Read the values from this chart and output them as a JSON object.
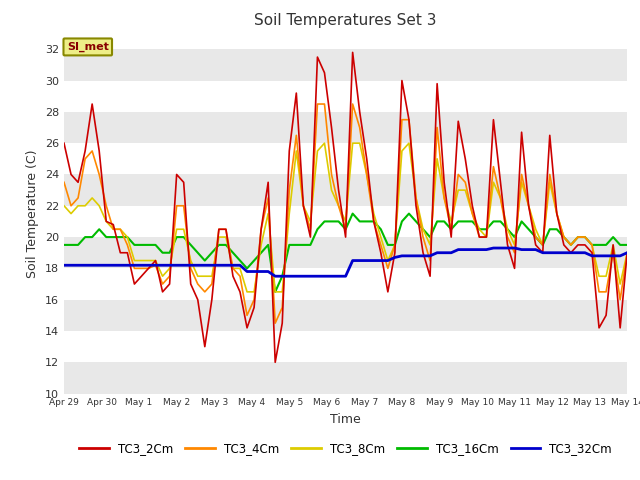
{
  "title": "Soil Temperatures Set 3",
  "xlabel": "Time",
  "ylabel": "Soil Temperature (C)",
  "annotation": "SI_met",
  "ylim": [
    10,
    33
  ],
  "yticks": [
    10,
    12,
    14,
    16,
    18,
    20,
    22,
    24,
    26,
    28,
    30,
    32
  ],
  "series_colors": {
    "TC3_2Cm": "#cc0000",
    "TC3_4Cm": "#ff8800",
    "TC3_8Cm": "#ddcc00",
    "TC3_16Cm": "#00bb00",
    "TC3_32Cm": "#0000cc"
  },
  "x_labels": [
    "Apr 29",
    "Apr 30",
    "May 1",
    "May 2",
    "May 3",
    "May 4",
    "May 5",
    "May 6",
    "May 7",
    "May 8",
    "May 9",
    "May 10",
    "May 11",
    "May 12",
    "May 13",
    "May 14"
  ],
  "x_positions": [
    0,
    1,
    2,
    3,
    4,
    5,
    6,
    7,
    8,
    9,
    10,
    11,
    12,
    13,
    14,
    15
  ],
  "TC3_2Cm": [
    26.0,
    24.0,
    23.5,
    25.5,
    28.5,
    25.5,
    21.0,
    20.8,
    19.0,
    19.0,
    17.0,
    17.5,
    18.0,
    18.5,
    16.5,
    17.0,
    24.0,
    23.5,
    17.0,
    16.0,
    13.0,
    16.0,
    20.5,
    20.5,
    17.5,
    16.5,
    14.2,
    15.5,
    20.5,
    23.5,
    12.0,
    14.5,
    25.5,
    29.2,
    22.0,
    20.0,
    31.5,
    30.5,
    27.0,
    23.0,
    20.0,
    31.8,
    28.0,
    25.0,
    21.0,
    19.0,
    16.5,
    19.0,
    30.0,
    27.5,
    22.0,
    19.0,
    17.5,
    29.8,
    23.5,
    20.0,
    27.4,
    25.0,
    22.0,
    20.0,
    20.0,
    27.5,
    23.5,
    19.5,
    18.0,
    26.7,
    22.0,
    19.5,
    19.0,
    26.5,
    21.5,
    19.5,
    19.0,
    19.5,
    19.5,
    19.0,
    14.2,
    15.0,
    19.5,
    14.2,
    19.0
  ],
  "TC3_4Cm": [
    23.5,
    22.0,
    22.5,
    25.0,
    25.5,
    24.0,
    22.0,
    20.5,
    20.5,
    19.5,
    18.0,
    18.0,
    18.0,
    18.2,
    17.0,
    17.5,
    22.0,
    22.0,
    18.0,
    17.0,
    16.5,
    17.0,
    20.5,
    20.5,
    18.0,
    17.5,
    15.0,
    16.0,
    20.5,
    22.5,
    14.5,
    15.5,
    23.0,
    26.5,
    22.0,
    20.5,
    28.5,
    28.5,
    24.0,
    22.0,
    20.5,
    28.5,
    27.0,
    24.0,
    21.0,
    19.5,
    18.0,
    19.5,
    27.5,
    27.5,
    22.5,
    20.0,
    18.5,
    27.0,
    22.5,
    20.5,
    24.0,
    23.5,
    21.5,
    20.0,
    20.0,
    24.5,
    22.5,
    20.0,
    19.0,
    24.0,
    22.0,
    20.0,
    19.5,
    24.0,
    21.5,
    20.0,
    19.5,
    20.0,
    20.0,
    19.5,
    16.5,
    16.5,
    19.0,
    16.0,
    19.0
  ],
  "TC3_8Cm": [
    22.0,
    21.5,
    22.0,
    22.0,
    22.5,
    22.0,
    21.0,
    20.5,
    20.5,
    20.0,
    18.5,
    18.5,
    18.5,
    18.5,
    17.5,
    18.0,
    20.5,
    20.5,
    18.5,
    17.5,
    17.5,
    17.5,
    20.0,
    20.0,
    18.0,
    18.0,
    16.5,
    16.5,
    19.5,
    21.5,
    16.5,
    16.5,
    21.5,
    25.5,
    22.0,
    21.0,
    25.5,
    26.0,
    23.0,
    22.0,
    21.0,
    26.0,
    26.0,
    24.0,
    21.5,
    20.0,
    18.5,
    19.5,
    25.5,
    26.0,
    22.5,
    20.5,
    19.5,
    25.0,
    22.5,
    21.0,
    23.0,
    23.0,
    21.5,
    20.5,
    20.0,
    23.5,
    22.5,
    20.5,
    19.5,
    23.5,
    22.0,
    20.5,
    19.5,
    23.5,
    21.5,
    20.0,
    19.5,
    20.0,
    20.0,
    19.5,
    17.5,
    17.5,
    19.5,
    17.0,
    19.0
  ],
  "TC3_16Cm": [
    19.5,
    19.5,
    19.5,
    20.0,
    20.0,
    20.5,
    20.0,
    20.0,
    20.0,
    20.0,
    19.5,
    19.5,
    19.5,
    19.5,
    19.0,
    19.0,
    20.0,
    20.0,
    19.5,
    19.0,
    18.5,
    19.0,
    19.5,
    19.5,
    19.0,
    18.5,
    18.0,
    18.5,
    19.0,
    19.5,
    16.5,
    17.5,
    19.5,
    19.5,
    19.5,
    19.5,
    20.5,
    21.0,
    21.0,
    21.0,
    20.5,
    21.5,
    21.0,
    21.0,
    21.0,
    20.5,
    19.5,
    19.5,
    21.0,
    21.5,
    21.0,
    20.5,
    20.0,
    21.0,
    21.0,
    20.5,
    21.0,
    21.0,
    21.0,
    20.5,
    20.5,
    21.0,
    21.0,
    20.5,
    20.0,
    21.0,
    20.5,
    20.0,
    19.5,
    20.5,
    20.5,
    20.0,
    19.5,
    20.0,
    20.0,
    19.5,
    19.5,
    19.5,
    20.0,
    19.5,
    19.5
  ],
  "TC3_32Cm": [
    18.2,
    18.2,
    18.2,
    18.2,
    18.2,
    18.2,
    18.2,
    18.2,
    18.2,
    18.2,
    18.2,
    18.2,
    18.2,
    18.2,
    18.2,
    18.2,
    18.2,
    18.2,
    18.2,
    18.2,
    18.2,
    18.2,
    18.2,
    18.2,
    18.2,
    18.2,
    17.8,
    17.8,
    17.8,
    17.8,
    17.5,
    17.5,
    17.5,
    17.5,
    17.5,
    17.5,
    17.5,
    17.5,
    17.5,
    17.5,
    17.5,
    18.5,
    18.5,
    18.5,
    18.5,
    18.5,
    18.5,
    18.7,
    18.8,
    18.8,
    18.8,
    18.8,
    18.8,
    19.0,
    19.0,
    19.0,
    19.2,
    19.2,
    19.2,
    19.2,
    19.2,
    19.3,
    19.3,
    19.3,
    19.3,
    19.2,
    19.2,
    19.2,
    19.0,
    19.0,
    19.0,
    19.0,
    19.0,
    19.0,
    19.0,
    18.8,
    18.8,
    18.8,
    18.8,
    18.8,
    19.0
  ]
}
